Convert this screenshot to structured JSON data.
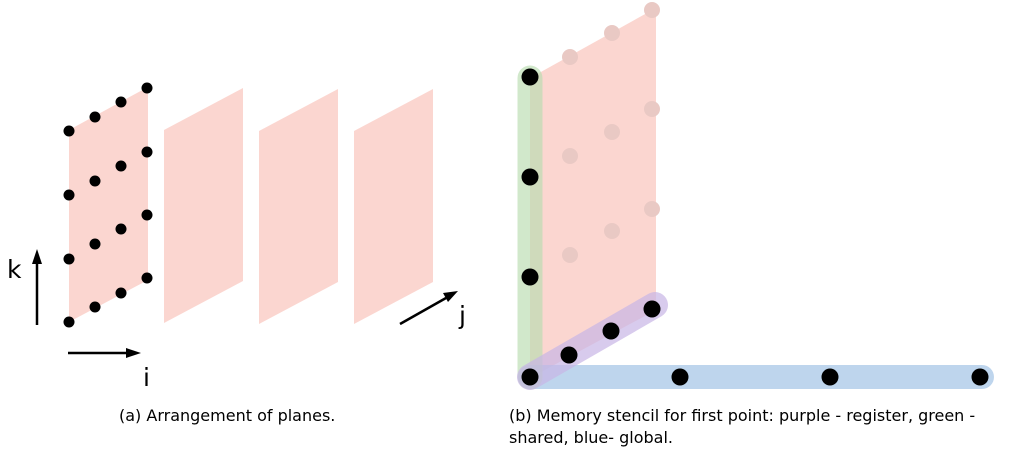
{
  "figure": {
    "left_panel": {
      "axis_labels": {
        "k": "k",
        "i": "i",
        "j": "j"
      },
      "caption": "(a) Arrangement of planes."
    },
    "right_panel": {
      "caption": "(b) Memory stencil for first point: purple - register, green - shared, blue- global."
    },
    "colors": {
      "plane": "#f9c8c0",
      "purple_register": "#c8b6e6",
      "green_shared": "#b9ddb0",
      "blue_global": "#a9c8e8",
      "point": "#000000",
      "faded_point": "#e9c9c4"
    }
  }
}
